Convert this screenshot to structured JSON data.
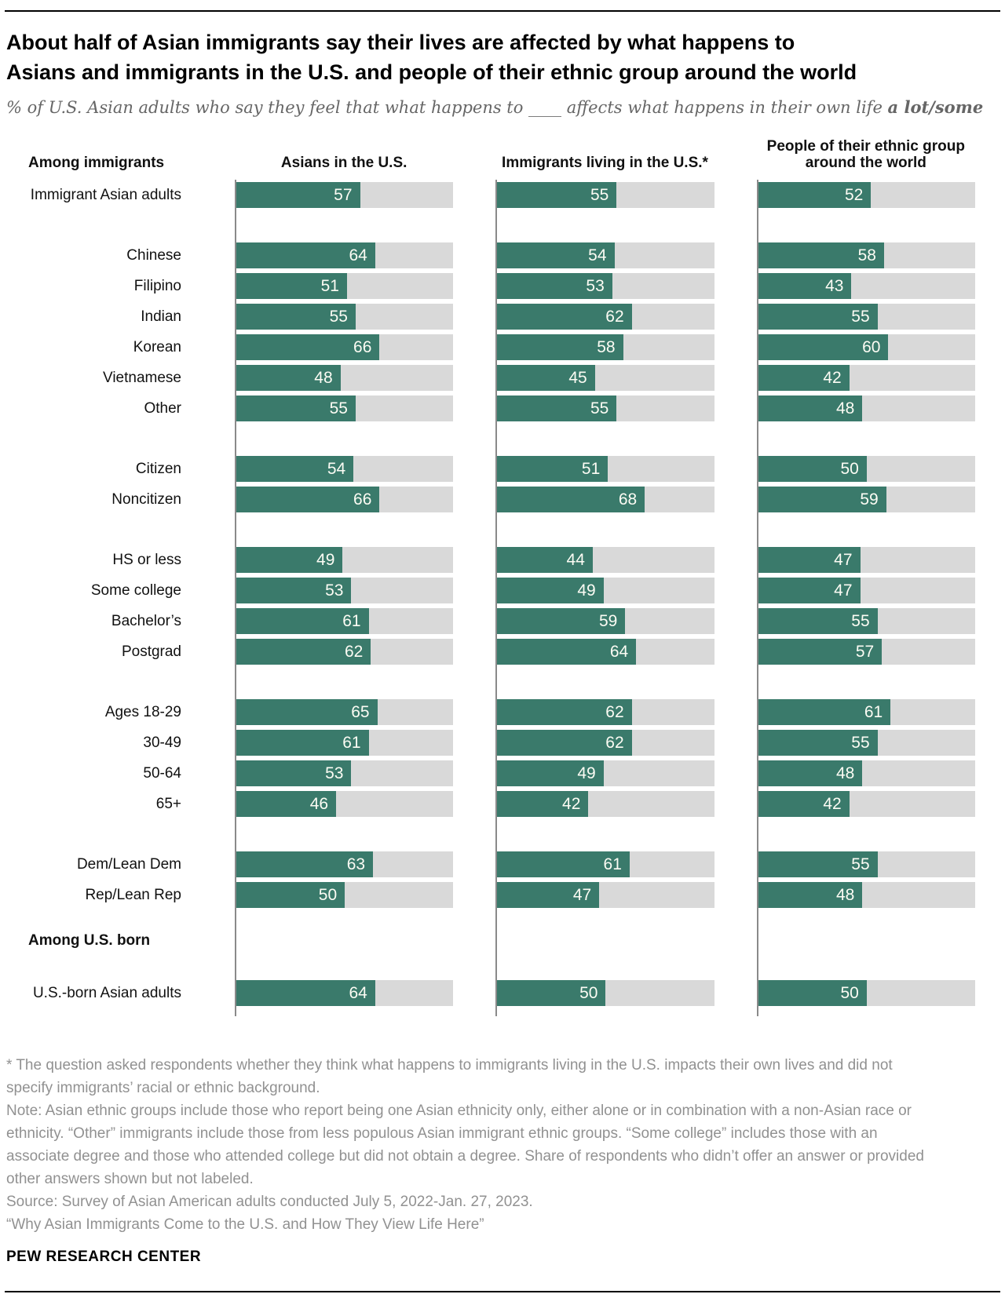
{
  "header": {
    "title_lines": [
      "About half of Asian immigrants say their lives are affected by what happens to",
      "Asians and immigrants in the U.S. and people of their ethnic group around the world"
    ],
    "subtitle_prefix": "% of U.S. Asian adults who say they feel that what happens to ____ affects what happens in their own life ",
    "subtitle_bold": "a lot/some"
  },
  "chart_data": {
    "type": "bar",
    "unit": "%",
    "xlim": [
      0,
      100
    ],
    "row_axis_label": "Among immigrants",
    "column_headers": [
      "Asians in the U.S.",
      "Immigrants living in the U.S.*",
      "People of their ethnic group around the world"
    ],
    "groups": [
      {
        "rows": [
          {
            "label": "Immigrant Asian adults",
            "values": [
              57,
              55,
              52
            ]
          }
        ]
      },
      {
        "rows": [
          {
            "label": "Chinese",
            "values": [
              64,
              54,
              58
            ]
          },
          {
            "label": "Filipino",
            "values": [
              51,
              53,
              43
            ]
          },
          {
            "label": "Indian",
            "values": [
              55,
              62,
              55
            ]
          },
          {
            "label": "Korean",
            "values": [
              66,
              58,
              60
            ]
          },
          {
            "label": "Vietnamese",
            "values": [
              48,
              45,
              42
            ]
          },
          {
            "label": "Other",
            "values": [
              55,
              55,
              48
            ]
          }
        ]
      },
      {
        "rows": [
          {
            "label": "Citizen",
            "values": [
              54,
              51,
              50
            ]
          },
          {
            "label": "Noncitizen",
            "values": [
              66,
              68,
              59
            ]
          }
        ]
      },
      {
        "rows": [
          {
            "label": "HS or less",
            "values": [
              49,
              44,
              47
            ]
          },
          {
            "label": "Some college",
            "values": [
              53,
              49,
              47
            ]
          },
          {
            "label": "Bachelor’s",
            "values": [
              61,
              59,
              55
            ]
          },
          {
            "label": "Postgrad",
            "values": [
              62,
              64,
              57
            ]
          }
        ]
      },
      {
        "rows": [
          {
            "label": "Ages 18-29",
            "values": [
              65,
              62,
              61
            ]
          },
          {
            "label": "30-49",
            "values": [
              61,
              62,
              55
            ]
          },
          {
            "label": "50-64",
            "values": [
              53,
              49,
              48
            ]
          },
          {
            "label": "65+",
            "values": [
              46,
              42,
              42
            ]
          }
        ]
      },
      {
        "rows": [
          {
            "label": "Dem/Lean Dem",
            "values": [
              63,
              61,
              55
            ]
          },
          {
            "label": "Rep/Lean Rep",
            "values": [
              50,
              47,
              48
            ]
          }
        ]
      },
      {
        "section_label": "Among U.S. born",
        "rows": [
          {
            "label": "U.S.-born Asian adults",
            "values": [
              64,
              50,
              50
            ]
          }
        ]
      }
    ],
    "colors": {
      "bar": "#3a7a6b",
      "track": "#d9d9d9",
      "axis": "#8a8a8a",
      "value_text": "#fcfcf4"
    },
    "legend_position": "none",
    "grid": false
  },
  "footnotes": {
    "lines": [
      "* The question asked respondents whether they think what happens to immigrants living in the U.S. impacts their own lives and did not",
      "specify immigrants’ racial or ethnic background.",
      "Note: Asian ethnic groups include those who report being one Asian ethnicity only, either alone or in combination with a non-Asian race or",
      "ethnicity. “Other” immigrants include those from less populous Asian immigrant ethnic groups. “Some college” includes those with an",
      "associate degree and those who attended college but did not obtain a degree. Share of respondents who didn’t offer an answer or provided",
      "other answers shown but not labeled.",
      "Source: Survey of Asian American adults conducted July 5, 2022-Jan. 27, 2023.",
      "“Why Asian Immigrants Come to the U.S. and How They View Life Here”"
    ]
  },
  "brand": "PEW RESEARCH CENTER"
}
